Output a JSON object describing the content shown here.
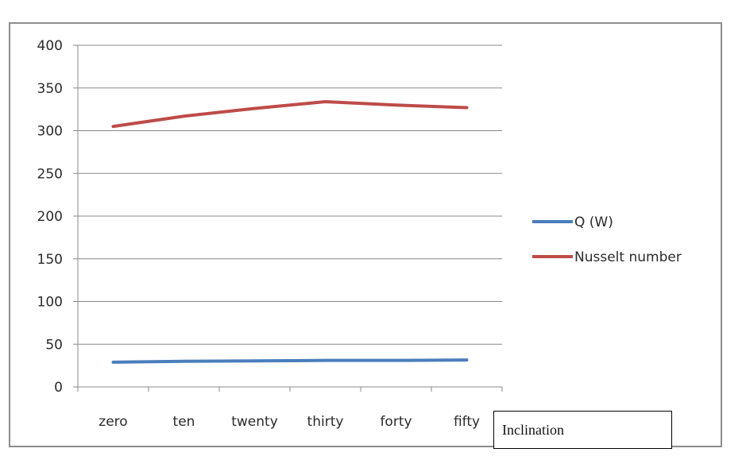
{
  "chart_data": {
    "type": "line",
    "categories": [
      "zero",
      "ten",
      "twenty",
      "thirty",
      "forty",
      "fifty"
    ],
    "xlabel": "Inclination",
    "ylabel": "",
    "ylim": [
      0,
      400
    ],
    "yticks": [
      0,
      50,
      100,
      150,
      200,
      250,
      300,
      350,
      400
    ],
    "grid": true,
    "legend_position": "right",
    "series": [
      {
        "name": "Q (W)",
        "color": "#4a7ebb",
        "values": [
          29,
          30,
          30.5,
          31,
          31,
          31.5
        ]
      },
      {
        "name": "Nusselt number",
        "color": "#be4b48",
        "values": [
          305,
          317,
          326,
          334,
          330,
          327
        ]
      }
    ]
  }
}
